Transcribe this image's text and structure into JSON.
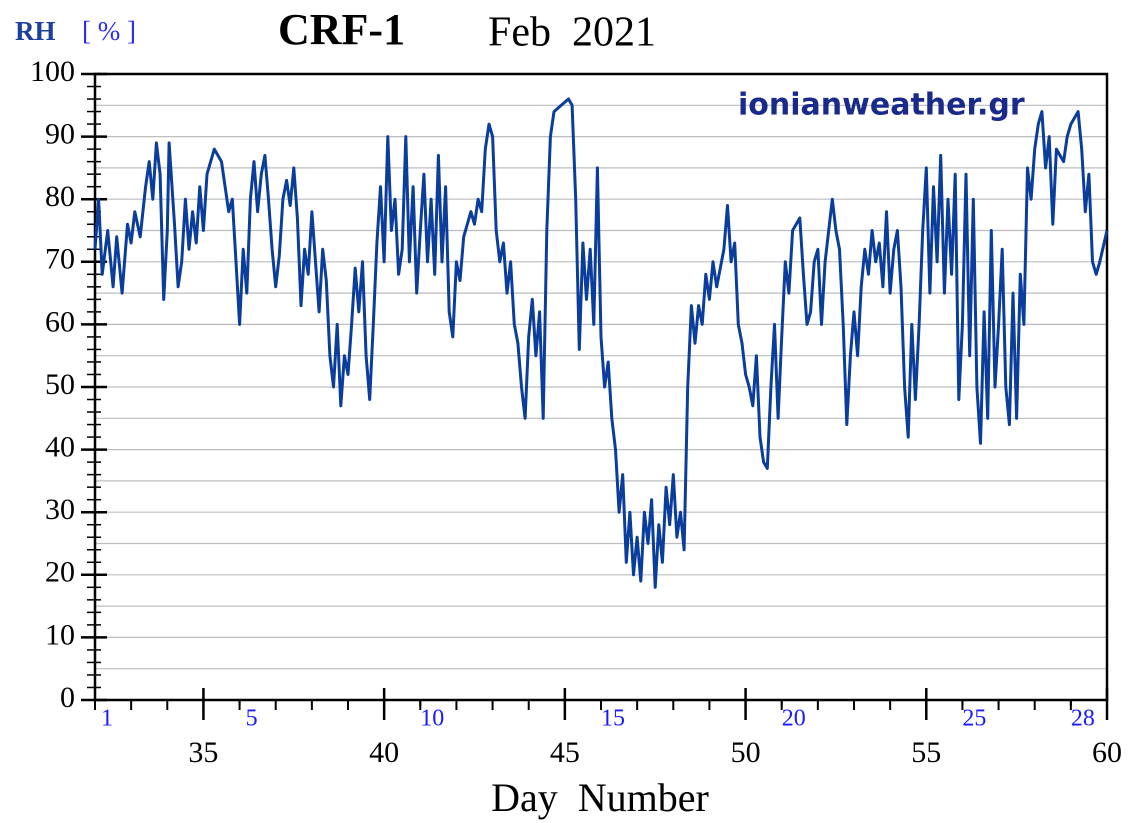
{
  "chart_data": {
    "type": "line",
    "title": "CRF-1",
    "subtitle": "Feb  2021",
    "ylabel": "RH",
    "ylabel_unit": "[ % ]",
    "xlabel": "Day  Number",
    "annotation": "ionianweather.gr",
    "xlim": [
      32,
      60
    ],
    "ylim": [
      0,
      100
    ],
    "xticks": [
      35,
      40,
      45,
      50,
      55,
      60
    ],
    "yticks": [
      0,
      10,
      20,
      30,
      40,
      50,
      60,
      70,
      80,
      90,
      100
    ],
    "ygrid_minor": [
      5,
      15,
      25,
      35,
      45,
      55,
      65,
      75,
      85,
      95
    ],
    "x2ticks": [
      {
        "value": 32,
        "label": "1"
      },
      {
        "value": 36,
        "label": "5"
      },
      {
        "value": 41,
        "label": "10"
      },
      {
        "value": 46,
        "label": "15"
      },
      {
        "value": 51,
        "label": "20"
      },
      {
        "value": 56,
        "label": "25"
      },
      {
        "value": 59,
        "label": "28"
      }
    ],
    "grid": true,
    "x": [
      32.0,
      32.1,
      32.2,
      32.35,
      32.5,
      32.6,
      32.75,
      32.9,
      33.0,
      33.1,
      33.25,
      33.4,
      33.5,
      33.6,
      33.7,
      33.8,
      33.9,
      34.0,
      34.05,
      34.2,
      34.3,
      34.4,
      34.5,
      34.6,
      34.7,
      34.8,
      34.9,
      35.0,
      35.1,
      35.3,
      35.5,
      35.7,
      35.8,
      35.9,
      36.0,
      36.1,
      36.2,
      36.3,
      36.4,
      36.5,
      36.6,
      36.7,
      36.8,
      36.9,
      37.0,
      37.1,
      37.2,
      37.3,
      37.4,
      37.5,
      37.6,
      37.7,
      37.8,
      37.9,
      38.0,
      38.1,
      38.2,
      38.3,
      38.4,
      38.5,
      38.6,
      38.7,
      38.8,
      38.9,
      39.0,
      39.1,
      39.2,
      39.3,
      39.4,
      39.5,
      39.6,
      39.7,
      39.8,
      39.9,
      40.0,
      40.1,
      40.2,
      40.3,
      40.4,
      40.5,
      40.6,
      40.7,
      40.8,
      40.9,
      41.0,
      41.1,
      41.2,
      41.3,
      41.4,
      41.5,
      41.6,
      41.7,
      41.8,
      41.9,
      42.0,
      42.1,
      42.2,
      42.4,
      42.5,
      42.6,
      42.7,
      42.8,
      42.9,
      43.0,
      43.1,
      43.2,
      43.3,
      43.4,
      43.5,
      43.6,
      43.7,
      43.8,
      43.9,
      44.0,
      44.1,
      44.2,
      44.3,
      44.4,
      44.5,
      44.6,
      44.7,
      44.9,
      45.1,
      45.2,
      45.3,
      45.4,
      45.5,
      45.6,
      45.7,
      45.8,
      45.9,
      46.0,
      46.1,
      46.2,
      46.3,
      46.4,
      46.5,
      46.6,
      46.7,
      46.8,
      46.9,
      47.0,
      47.1,
      47.2,
      47.3,
      47.4,
      47.5,
      47.6,
      47.7,
      47.8,
      47.9,
      48.0,
      48.1,
      48.2,
      48.3,
      48.4,
      48.5,
      48.6,
      48.7,
      48.8,
      48.9,
      49.0,
      49.1,
      49.2,
      49.4,
      49.5,
      49.6,
      49.7,
      49.8,
      49.9,
      50.0,
      50.1,
      50.2,
      50.3,
      50.4,
      50.5,
      50.6,
      50.7,
      50.8,
      50.9,
      51.0,
      51.1,
      51.2,
      51.3,
      51.5,
      51.6,
      51.7,
      51.8,
      51.9,
      52.0,
      52.1,
      52.2,
      52.3,
      52.4,
      52.5,
      52.6,
      52.7,
      52.8,
      52.9,
      53.0,
      53.1,
      53.2,
      53.3,
      53.4,
      53.5,
      53.6,
      53.7,
      53.8,
      53.9,
      54.0,
      54.1,
      54.2,
      54.3,
      54.4,
      54.5,
      54.6,
      54.7,
      54.8,
      54.9,
      55.0,
      55.1,
      55.2,
      55.3,
      55.4,
      55.5,
      55.6,
      55.7,
      55.8,
      55.9,
      56.0,
      56.1,
      56.2,
      56.3,
      56.4,
      56.5,
      56.6,
      56.7,
      56.8,
      56.9,
      57.0,
      57.1,
      57.2,
      57.3,
      57.4,
      57.5,
      57.6,
      57.7,
      57.8,
      57.9,
      58.0,
      58.1,
      58.2,
      58.3,
      58.4,
      58.5,
      58.6,
      58.8,
      58.9,
      59.0,
      59.2,
      59.3,
      59.4,
      59.5,
      59.6,
      59.7,
      59.8,
      60.0
    ],
    "series": [
      {
        "color": "#0a3d9c",
        "values": [
          72,
          80,
          68,
          75,
          66,
          74,
          65,
          76,
          73,
          78,
          74,
          82,
          86,
          80,
          89,
          84,
          64,
          75,
          89,
          76,
          66,
          70,
          80,
          72,
          78,
          73,
          82,
          75,
          84,
          88,
          86,
          78,
          80,
          70,
          60,
          72,
          65,
          80,
          86,
          78,
          84,
          87,
          80,
          72,
          66,
          71,
          80,
          83,
          79,
          85,
          77,
          63,
          72,
          68,
          78,
          70,
          62,
          72,
          67,
          55,
          50,
          60,
          47,
          55,
          52,
          60,
          69,
          62,
          70,
          55,
          48,
          60,
          73,
          82,
          70,
          90,
          75,
          80,
          68,
          72,
          90,
          70,
          82,
          65,
          75,
          84,
          70,
          80,
          68,
          87,
          70,
          82,
          62,
          58,
          70,
          67,
          74,
          78,
          76,
          80,
          78,
          88,
          92,
          90,
          75,
          70,
          73,
          65,
          70,
          60,
          57,
          50,
          45,
          58,
          64,
          55,
          62,
          45,
          75,
          90,
          94,
          95,
          96,
          95,
          80,
          56,
          73,
          64,
          72,
          60,
          85,
          58,
          50,
          54,
          45,
          40,
          30,
          36,
          22,
          30,
          20,
          26,
          19,
          30,
          25,
          32,
          18,
          28,
          22,
          34,
          28,
          36,
          26,
          30,
          24,
          50,
          63,
          57,
          63,
          60,
          68,
          64,
          70,
          66,
          72,
          79,
          70,
          73,
          60,
          57,
          52,
          50,
          47,
          55,
          42,
          38,
          37,
          50,
          60,
          45,
          58,
          70,
          65,
          75,
          77,
          68,
          60,
          62,
          70,
          72,
          60,
          70,
          75,
          80,
          75,
          72,
          60,
          44,
          55,
          62,
          55,
          66,
          72,
          68,
          75,
          70,
          73,
          66,
          78,
          65,
          72,
          75,
          66,
          50,
          42,
          60,
          48,
          60,
          75,
          85,
          65,
          82,
          70,
          87,
          65,
          80,
          68,
          84,
          48,
          60,
          84,
          55,
          80,
          50,
          41,
          62,
          45,
          75,
          50,
          60,
          72,
          50,
          44,
          65,
          45,
          68,
          60,
          85,
          80,
          88,
          92,
          94,
          85,
          90,
          76,
          88,
          86,
          90,
          92,
          94,
          88,
          78,
          84,
          70,
          68,
          70,
          75
        ]
      }
    ]
  }
}
